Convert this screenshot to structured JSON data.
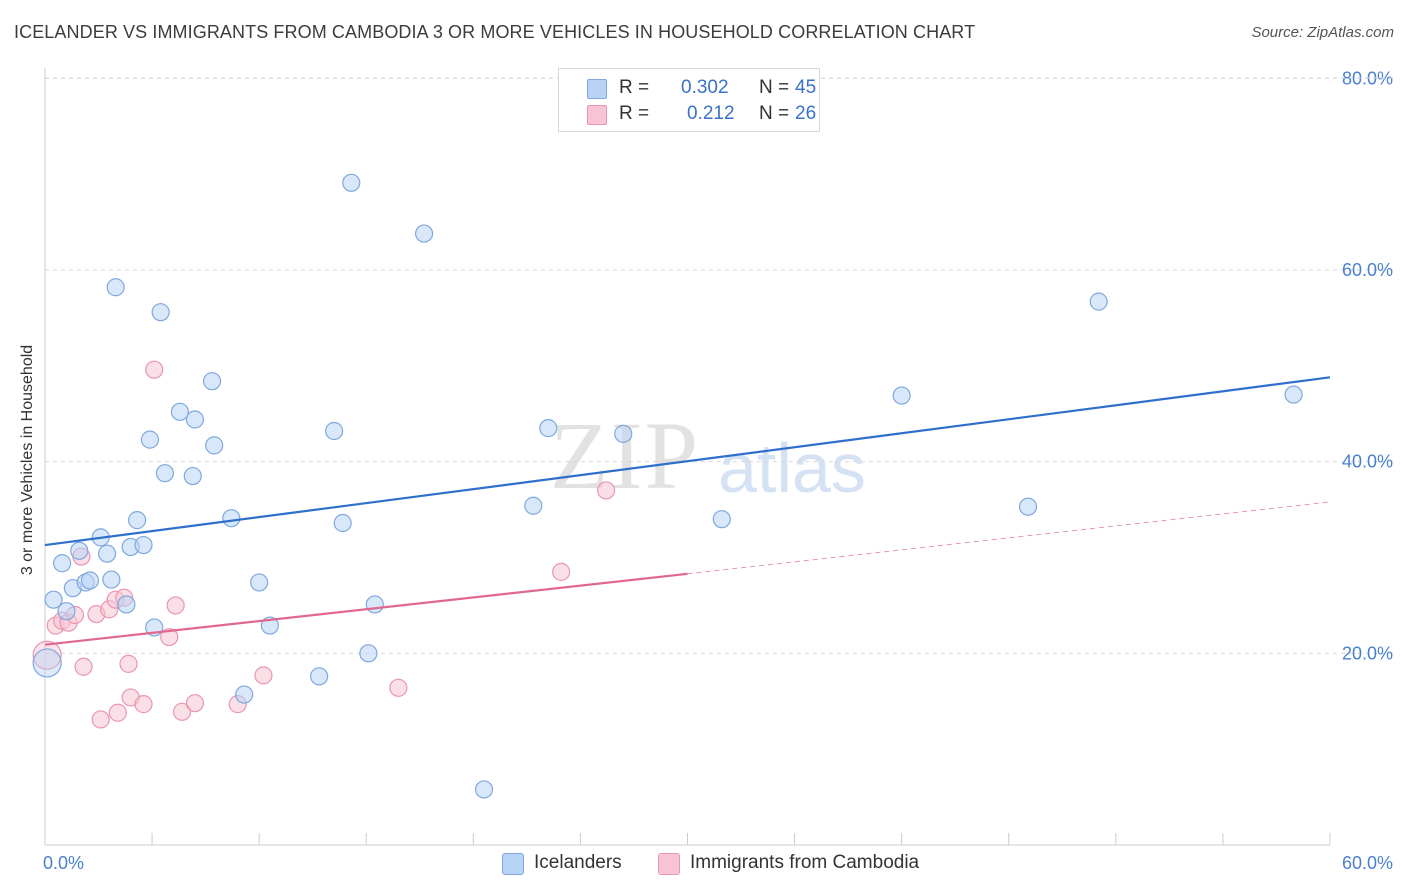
{
  "title": "ICELANDER VS IMMIGRANTS FROM CAMBODIA 3 OR MORE VEHICLES IN HOUSEHOLD CORRELATION CHART",
  "source": "Source: ZipAtlas.com",
  "watermark": {
    "zip": "ZIP",
    "atlas": "atlas"
  },
  "colors": {
    "blue_fill": "#b8d3f5",
    "blue_stroke": "#7fa8dd",
    "blue_line": "#2f6fcc",
    "pink_fill": "#f8c4d3",
    "pink_stroke": "#e996b0",
    "pink_line": "#e0688f",
    "tick_text": "#4a7fd0",
    "grid": "#d9d9d9"
  },
  "legend": {
    "rows": [
      {
        "r_label": "R =",
        "r_value": "0.302",
        "n_label": "N =",
        "n_value": "45"
      },
      {
        "r_label": "R =",
        "r_value": "0.212",
        "n_label": "N =",
        "n_value": "26"
      }
    ]
  },
  "bottom_legend": {
    "series1": "Icelanders",
    "series2": "Immigrants from Cambodia"
  },
  "chart_data": {
    "type": "scatter",
    "title": "ICELANDER VS IMMIGRANTS FROM CAMBODIA 3 OR MORE VEHICLES IN HOUSEHOLD CORRELATION CHART",
    "xlabel": "",
    "ylabel": "3 or more Vehicles in Household",
    "xlim": [
      0,
      60
    ],
    "ylim": [
      0,
      82
    ],
    "x_tick_labels": [
      "0.0%",
      "60.0%"
    ],
    "y_ticks": [
      20,
      40,
      60,
      80
    ],
    "y_tick_labels": [
      "20.0%",
      "40.0%",
      "60.0%",
      "80.0%"
    ],
    "series": [
      {
        "name": "Icelanders",
        "color": "#b8d3f5",
        "points": [
          [
            0.1,
            19.0
          ],
          [
            0.4,
            25.6
          ],
          [
            0.8,
            29.4
          ],
          [
            1.0,
            24.4
          ],
          [
            1.3,
            26.8
          ],
          [
            1.6,
            30.7
          ],
          [
            1.9,
            27.4
          ],
          [
            2.1,
            27.6
          ],
          [
            2.6,
            32.1
          ],
          [
            2.9,
            30.4
          ],
          [
            3.1,
            27.7
          ],
          [
            3.3,
            58.2
          ],
          [
            3.8,
            25.1
          ],
          [
            4.0,
            31.1
          ],
          [
            4.3,
            33.9
          ],
          [
            4.6,
            31.3
          ],
          [
            4.9,
            42.3
          ],
          [
            5.1,
            22.7
          ],
          [
            5.4,
            55.6
          ],
          [
            5.6,
            38.8
          ],
          [
            6.3,
            45.2
          ],
          [
            6.9,
            38.5
          ],
          [
            7.0,
            44.4
          ],
          [
            7.8,
            48.4
          ],
          [
            7.9,
            41.7
          ],
          [
            8.7,
            34.1
          ],
          [
            9.3,
            15.7
          ],
          [
            10.0,
            27.4
          ],
          [
            10.5,
            22.9
          ],
          [
            12.8,
            17.6
          ],
          [
            13.5,
            43.2
          ],
          [
            13.9,
            33.6
          ],
          [
            14.3,
            69.1
          ],
          [
            15.1,
            20.0
          ],
          [
            15.4,
            25.1
          ],
          [
            17.7,
            63.8
          ],
          [
            20.5,
            5.8
          ],
          [
            22.8,
            35.4
          ],
          [
            23.5,
            43.5
          ],
          [
            27.0,
            42.9
          ],
          [
            31.6,
            34.0
          ],
          [
            40.0,
            46.9
          ],
          [
            45.9,
            35.3
          ],
          [
            49.2,
            56.7
          ],
          [
            58.3,
            47.0
          ]
        ],
        "trend": {
          "x": [
            0,
            60
          ],
          "y": [
            31.3,
            48.8
          ]
        }
      },
      {
        "name": "Immigrants from Cambodia",
        "color": "#f8c4d3",
        "points": [
          [
            0.1,
            19.8
          ],
          [
            0.5,
            22.9
          ],
          [
            0.8,
            23.4
          ],
          [
            1.1,
            23.2
          ],
          [
            1.4,
            24.0
          ],
          [
            1.7,
            30.1
          ],
          [
            1.8,
            18.6
          ],
          [
            2.4,
            24.1
          ],
          [
            2.6,
            13.1
          ],
          [
            3.0,
            24.6
          ],
          [
            3.3,
            25.6
          ],
          [
            3.4,
            13.8
          ],
          [
            3.7,
            25.8
          ],
          [
            3.9,
            18.9
          ],
          [
            4.0,
            15.4
          ],
          [
            4.6,
            14.7
          ],
          [
            5.1,
            49.6
          ],
          [
            5.8,
            21.7
          ],
          [
            6.1,
            25.0
          ],
          [
            6.4,
            13.9
          ],
          [
            7.0,
            14.8
          ],
          [
            9.0,
            14.7
          ],
          [
            10.2,
            17.7
          ],
          [
            16.5,
            16.4
          ],
          [
            24.1,
            28.5
          ],
          [
            26.2,
            37.0
          ]
        ],
        "trend": {
          "x": [
            0,
            30
          ],
          "y": [
            20.9,
            28.3
          ]
        },
        "trend_extension": {
          "x": [
            30,
            60
          ],
          "y": [
            28.3,
            35.8
          ]
        }
      }
    ]
  }
}
